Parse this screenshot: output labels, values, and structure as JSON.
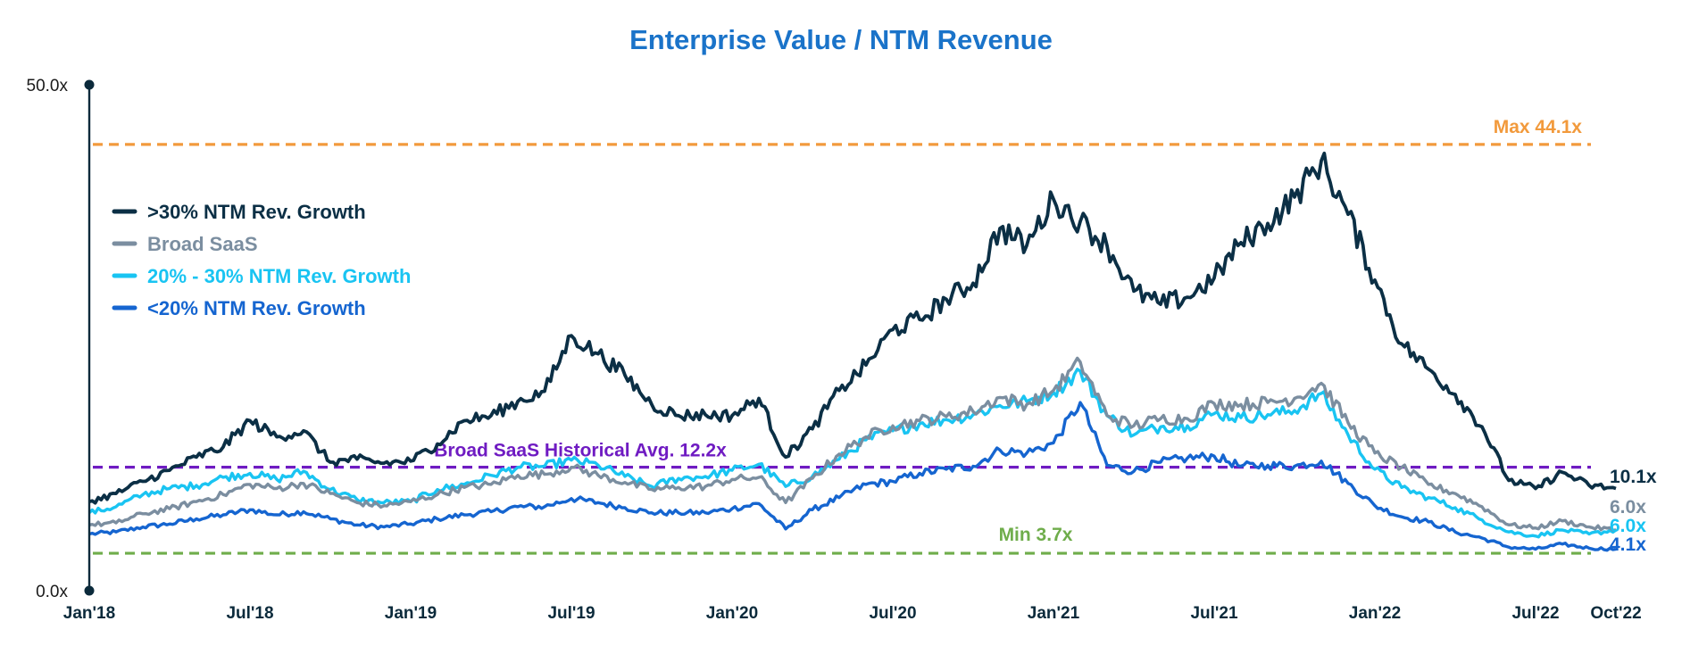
{
  "chart_data": {
    "type": "line",
    "title": "Enterprise Value / NTM Revenue",
    "title_color": "#1a73c9",
    "ylim": [
      0,
      50
    ],
    "y_ticks": [
      {
        "value": 0,
        "label": "0.0x"
      },
      {
        "value": 50,
        "label": "50.0x"
      }
    ],
    "x_ticks": [
      "Jan'18",
      "Jul'18",
      "Jan'19",
      "Jul'19",
      "Jan'20",
      "Jul'20",
      "Jan'21",
      "Jul'21",
      "Jan'22",
      "Jul'22",
      "Oct'22"
    ],
    "x_tick_dates": [
      "2018-01",
      "2018-07",
      "2019-01",
      "2019-07",
      "2020-01",
      "2020-07",
      "2021-01",
      "2021-07",
      "2022-01",
      "2022-07",
      "2022-10"
    ],
    "x_dates": [
      "2018-01",
      "2018-02",
      "2018-03",
      "2018-04",
      "2018-05",
      "2018-06",
      "2018-07",
      "2018-08",
      "2018-09",
      "2018-10",
      "2018-11",
      "2018-12",
      "2019-01",
      "2019-02",
      "2019-03",
      "2019-04",
      "2019-05",
      "2019-06",
      "2019-07",
      "2019-08",
      "2019-09",
      "2019-10",
      "2019-11",
      "2019-12",
      "2020-01",
      "2020-02",
      "2020-03",
      "2020-04",
      "2020-05",
      "2020-06",
      "2020-07",
      "2020-08",
      "2020-09",
      "2020-10",
      "2020-11",
      "2020-12",
      "2021-01",
      "2021-02",
      "2021-03",
      "2021-04",
      "2021-05",
      "2021-06",
      "2021-07",
      "2021-08",
      "2021-09",
      "2021-10",
      "2021-11",
      "2021-12",
      "2022-01",
      "2022-02",
      "2022-03",
      "2022-04",
      "2022-05",
      "2022-06",
      "2022-07",
      "2022-08",
      "2022-09",
      "2022-10"
    ],
    "series": [
      {
        "name": ">30% NTM Rev. Growth",
        "color": "#0b2f45",
        "values": [
          8.8,
          9.6,
          10.8,
          11.9,
          13.2,
          14.2,
          16.8,
          15.2,
          15.8,
          12.7,
          13.0,
          12.6,
          12.8,
          14.5,
          16.8,
          17.3,
          18.7,
          19.7,
          25.2,
          23.4,
          21.3,
          18.4,
          17.3,
          17.4,
          17.3,
          19.0,
          13.2,
          16.0,
          19.8,
          22.3,
          25.8,
          26.8,
          28.8,
          30.4,
          35.8,
          34.1,
          38.7,
          36.5,
          34.1,
          29.6,
          28.3,
          29.0,
          30.9,
          34.4,
          36.3,
          38.9,
          42.5,
          37.2,
          30.7,
          24.4,
          21.9,
          19.4,
          16.2,
          10.9,
          10.1,
          11.7,
          10.4,
          10.1
        ]
      },
      {
        "name": "Broad SaaS",
        "color": "#7b8ea0",
        "values": [
          6.5,
          6.7,
          7.6,
          8.1,
          8.8,
          9.5,
          10.5,
          10.1,
          10.6,
          9.6,
          8.7,
          8.4,
          8.8,
          9.5,
          10.2,
          10.5,
          11.4,
          11.5,
          12.2,
          11.4,
          10.7,
          10.0,
          10.2,
          10.3,
          11.0,
          11.2,
          8.7,
          11.1,
          13.5,
          15.2,
          16.3,
          16.8,
          17.2,
          17.7,
          19.1,
          18.4,
          19.8,
          22.6,
          17.3,
          16.3,
          17.0,
          17.0,
          18.5,
          18.4,
          18.6,
          19.0,
          20.5,
          16.6,
          13.6,
          12.2,
          10.5,
          9.6,
          8.3,
          6.5,
          6.2,
          6.9,
          6.3,
          6.0
        ]
      },
      {
        "name": "20% - 30% NTM Rev. Growth",
        "color": "#19c4f2",
        "values": [
          7.7,
          8.3,
          9.5,
          10.1,
          10.4,
          11.2,
          11.6,
          11.0,
          11.8,
          10.0,
          9.0,
          8.7,
          8.8,
          10.0,
          10.5,
          11.4,
          12.2,
          12.3,
          12.9,
          12.4,
          11.3,
          10.3,
          11.1,
          11.3,
          11.9,
          12.5,
          10.3,
          11.3,
          13.0,
          14.9,
          15.8,
          16.5,
          16.9,
          17.4,
          18.3,
          18.7,
          19.6,
          21.7,
          17.3,
          15.4,
          16.2,
          16.3,
          17.5,
          17.1,
          17.4,
          17.8,
          19.5,
          15.4,
          12.0,
          10.2,
          9.2,
          8.2,
          7.0,
          5.8,
          5.4,
          6.0,
          5.6,
          6.0
        ]
      },
      {
        "name": "<20% NTM Rev. Growth",
        "color": "#1565d0",
        "values": [
          5.6,
          5.8,
          6.3,
          6.6,
          7.1,
          7.5,
          8.0,
          7.5,
          7.8,
          7.1,
          6.5,
          6.3,
          6.6,
          7.1,
          7.5,
          7.8,
          8.3,
          8.3,
          9.1,
          8.7,
          8.2,
          7.7,
          7.7,
          7.7,
          8.1,
          8.6,
          6.1,
          8.0,
          9.2,
          10.5,
          10.8,
          11.6,
          12.0,
          12.3,
          13.9,
          13.6,
          14.6,
          18.6,
          12.4,
          11.8,
          12.7,
          13.1,
          13.3,
          12.3,
          12.4,
          12.3,
          12.8,
          10.6,
          8.4,
          7.3,
          6.8,
          5.8,
          5.2,
          4.3,
          4.1,
          4.6,
          4.2,
          4.1
        ]
      }
    ],
    "reference_lines": [
      {
        "label": "Max 44.1x",
        "value": 44.1,
        "color": "#f29a3c"
      },
      {
        "label": "Broad SaaS Historical Avg. 12.2x",
        "value": 12.2,
        "color": "#6f1bc2"
      },
      {
        "label": "Min 3.7x",
        "value": 3.7,
        "color": "#6fad4b"
      }
    ],
    "end_labels": [
      {
        "text": "10.1x",
        "color": "#0b2f45"
      },
      {
        "text": "6.0x",
        "color": "#7b8ea0"
      },
      {
        "text": "6.0x",
        "color": "#19c4f2"
      },
      {
        "text": "4.1x",
        "color": "#1565d0"
      }
    ],
    "legend_position": "left",
    "grid": false
  }
}
